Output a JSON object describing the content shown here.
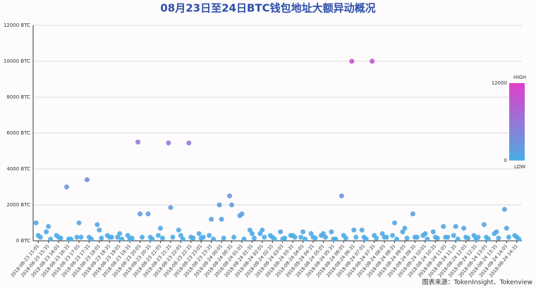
{
  "chart_data": {
    "type": "scatter",
    "title": "08月23日至24日BTC钱包地址大额异动概况",
    "source": "图表来源：TokenInsight、Tokenview",
    "categories": [
      "2018-08-23 15:01",
      "2018-08-23 15:31",
      "2018-08-23 16:01",
      "2018-08-23 16:31",
      "2018-08-23 17:01",
      "2018-08-23 17:31",
      "2018-08-23 18:01",
      "2018-08-23 18:31",
      "2018-08-23 19:01",
      "2018-08-23 19:31",
      "2018-08-23 20:01",
      "2018-08-23 20:31",
      "2018-08-23 21:01",
      "2018-08-23 21:31",
      "2018-08-23 22:01",
      "2018-08-23 22:31",
      "2018-08-23 23:01",
      "2018-08-23 23:31",
      "2018-08-24 00:01",
      "2018-08-24 00:31",
      "2018-08-24 01:01",
      "2018-08-24 01:31",
      "2018-08-24 02:01",
      "2018-08-24 02:31",
      "2018-08-24 03:01",
      "2018-08-24 03:31",
      "2018-08-24 04:01",
      "2018-08-24 04:31",
      "2018-08-24 05:01",
      "2018-08-24 05:31",
      "2018-08-24 06:01",
      "2018-08-24 06:31",
      "2018-08-24 07:01",
      "2018-08-24 07:31",
      "2018-08-24 08:01",
      "2018-08-24 08:31",
      "2018-08-24 09:01",
      "2018-08-24 09:31",
      "2018-08-24 10:01",
      "2018-08-24 10:31",
      "2018-08-24 11:01",
      "2018-08-24 11:31",
      "2018-08-24 12:01",
      "2018-08-24 12:31",
      "2018-08-24 13:01",
      "2018-08-24 13:31",
      "2018-08-24 14:01",
      "2018-08-24 14:31"
    ],
    "series": [
      {
        "values": [
          1000,
          500,
          300,
          3000,
          200,
          3400,
          900,
          300,
          200,
          300,
          5500,
          1500,
          300,
          5450,
          600,
          5450,
          400,
          300,
          2000,
          2500,
          1400,
          600,
          400,
          300,
          500,
          300,
          200,
          400,
          300,
          500,
          2500,
          10000,
          600,
          10000,
          400,
          300,
          500,
          1500,
          300,
          500,
          800,
          300,
          700,
          300,
          900,
          400,
          1750,
          300
        ]
      },
      {
        "values": [
          300,
          800,
          200,
          100,
          1000,
          200,
          600,
          200,
          400,
          100,
          1500,
          200,
          700,
          1850,
          300,
          200,
          150,
          1200,
          1200,
          2000,
          1500,
          400,
          600,
          200,
          100,
          300,
          500,
          200,
          400,
          100,
          300,
          600,
          200,
          300,
          200,
          1000,
          700,
          200,
          400,
          200,
          200,
          800,
          200,
          100,
          200,
          500,
          700,
          200
        ]
      },
      {
        "values": [
          200,
          100,
          150,
          100,
          200,
          100,
          150,
          200,
          100,
          150,
          200,
          100,
          150,
          200,
          100,
          150,
          200,
          100,
          150,
          200,
          100,
          150,
          200,
          100,
          150,
          200,
          100,
          150,
          200,
          100,
          150,
          200,
          100,
          150,
          200,
          100,
          150,
          200,
          100,
          150,
          200,
          100,
          150,
          200,
          100,
          150,
          200,
          100
        ]
      }
    ],
    "ylim": [
      0,
      12000
    ],
    "yticks": [
      {
        "value": 0,
        "label": "0 BTC"
      },
      {
        "value": 2000,
        "label": "2000 BTC"
      },
      {
        "value": 4000,
        "label": "4000 BTC"
      },
      {
        "value": 6000,
        "label": "6000 BTC"
      },
      {
        "value": 8000,
        "label": "8000 BTC"
      },
      {
        "value": 10000,
        "label": "10000 BTC"
      },
      {
        "value": 12000,
        "label": "12000 BTC"
      }
    ],
    "grid": true,
    "visual_map": {
      "range": [
        0,
        12000
      ],
      "text": [
        "HIGH",
        "LOW"
      ],
      "colors": [
        "#4aaee6",
        "#e23ec8"
      ]
    }
  }
}
